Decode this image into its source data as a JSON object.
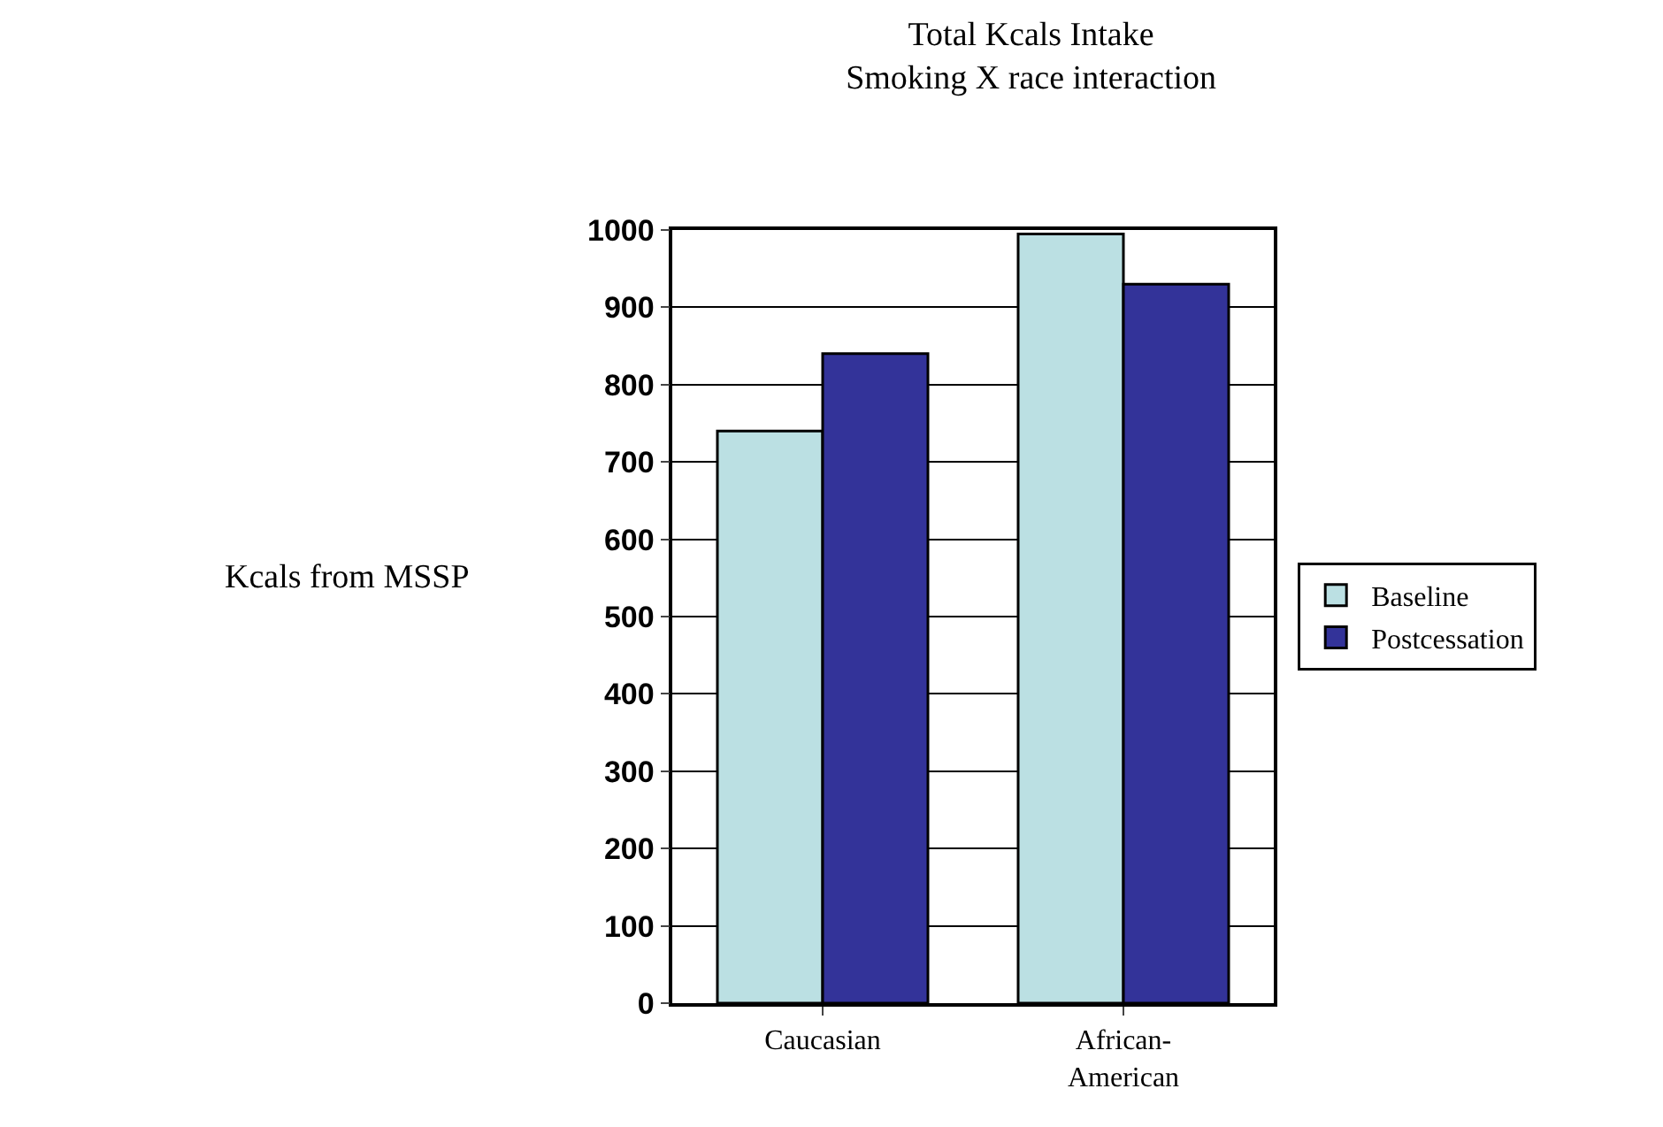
{
  "chart_data": {
    "type": "bar",
    "title": "Total Kcals Intake\nSmoking X race interaction",
    "ylabel": "Kcals from MSSP",
    "categories": [
      "Caucasian",
      "African-\nAmerican"
    ],
    "series": [
      {
        "name": "Baseline",
        "color": "#bbe0e3",
        "values": [
          740,
          995
        ]
      },
      {
        "name": "Postcessation",
        "color": "#333399",
        "values": [
          840,
          930
        ]
      }
    ],
    "ylim": [
      0,
      1000
    ],
    "yticks": [
      0,
      100,
      200,
      300,
      400,
      500,
      600,
      700,
      800,
      900,
      1000
    ],
    "grid": "y",
    "legend": "right"
  }
}
